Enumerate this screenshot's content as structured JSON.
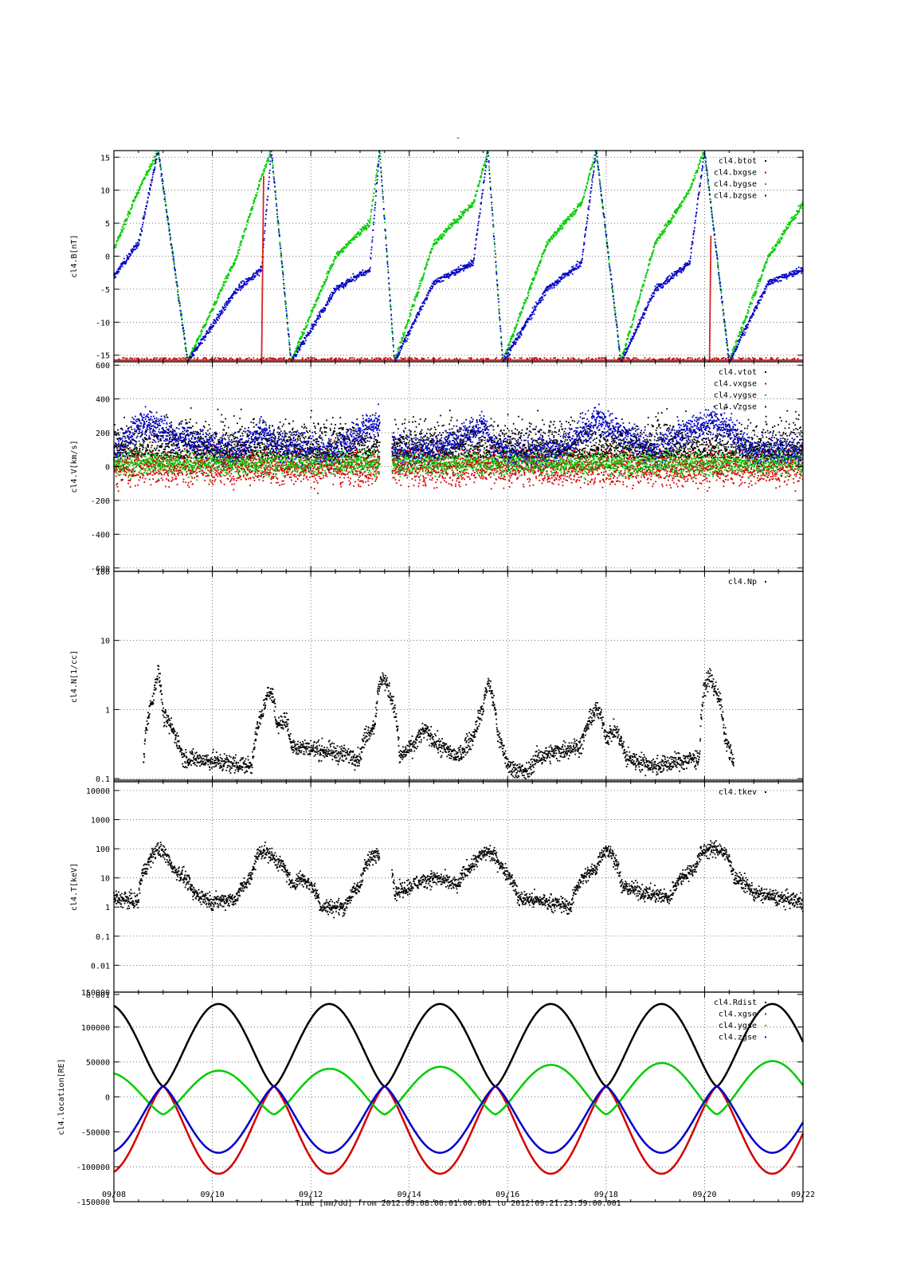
{
  "figure": {
    "title": "-",
    "time_axis_label": "Time [mm/dd]  from 2012:09:08:00:01:00.001  to  2012:09:21:23:59:00.001",
    "x_tick_labels": [
      "09/08",
      "09/10",
      "09/12",
      "09/14",
      "09/16",
      "09/18",
      "09/20",
      "09/22"
    ],
    "x_range_days": [
      8,
      22
    ]
  },
  "chart_data": [
    {
      "type": "scatter",
      "panel": "magnetic-field",
      "ylabel": "cl4.B[nT]",
      "ylim": [
        -16,
        16
      ],
      "scale": "linear",
      "y_ticks": [
        15,
        10,
        5,
        0,
        -5,
        -10,
        -15
      ],
      "y_tick_labels": [
        "15",
        "10",
        "5",
        "0",
        "-5",
        "-10",
        "-15"
      ],
      "grid": true,
      "legend_position": "top-right",
      "series": [
        {
          "name": "cl4.btot",
          "color": "#000000"
        },
        {
          "name": "cl4.bxgse",
          "color": "#d40000"
        },
        {
          "name": "cl4.bygse",
          "color": "#00cc00"
        },
        {
          "name": "cl4.bzgse",
          "color": "#0000c8"
        }
      ],
      "x": [
        8.0,
        8.5,
        8.9,
        9.5,
        10.5,
        11.0,
        11.2,
        11.6,
        12.5,
        13.2,
        13.4,
        13.7,
        14.5,
        15.3,
        15.6,
        15.9,
        16.8,
        17.5,
        17.8,
        18.3,
        19.0,
        19.7,
        20.0,
        20.5,
        21.3,
        22.0
      ],
      "bygse": [
        1,
        10,
        16,
        -16,
        0,
        12,
        16,
        -16,
        0,
        5,
        16,
        -16,
        2,
        8,
        16,
        -16,
        2,
        8,
        16,
        -16,
        2,
        10,
        16,
        -16,
        0,
        8
      ],
      "bzgse": [
        -3,
        2,
        16,
        -16,
        -5,
        -2,
        16,
        -16,
        -5,
        -2,
        16,
        -16,
        -4,
        -1,
        16,
        -16,
        -5,
        -1,
        16,
        -16,
        -5,
        -1,
        16,
        -16,
        -4,
        -2
      ],
      "bxgse_spike": {
        "x": [
          11.0,
          20.1
        ],
        "values": [
          12,
          3
        ]
      }
    },
    {
      "type": "scatter",
      "panel": "velocity",
      "ylabel": "cl4.V[km/s]",
      "ylim": [
        -620,
        620
      ],
      "scale": "linear",
      "y_ticks": [
        600,
        400,
        200,
        0,
        -200,
        -400,
        -600
      ],
      "y_tick_labels": [
        "600",
        "400",
        "200",
        "0",
        "-200",
        "-400",
        "-600"
      ],
      "grid": true,
      "legend_position": "top-right",
      "series": [
        {
          "name": "cl4.vtot",
          "color": "#000000"
        },
        {
          "name": "cl4.vxgse",
          "color": "#d40000"
        },
        {
          "name": "cl4.vygse",
          "color": "#00cc00"
        },
        {
          "name": "cl4.vzgse",
          "color": "#0000c8"
        }
      ],
      "gap_days": [
        [
          13.4,
          13.65
        ]
      ],
      "vzgse_envelope": {
        "x": [
          8.0,
          8.5,
          8.7,
          9.2,
          10.5,
          11.0,
          11.3,
          12.5,
          13.2,
          13.4,
          13.7,
          14.5,
          15.5,
          15.7,
          16.0,
          17.0,
          17.8,
          18.2,
          19.0,
          19.8,
          20.2,
          20.5,
          21.0,
          22.0
        ],
        "values": [
          150,
          400,
          450,
          300,
          150,
          350,
          200,
          150,
          400,
          450,
          150,
          150,
          400,
          200,
          150,
          150,
          450,
          350,
          150,
          400,
          450,
          350,
          150,
          150
        ]
      }
    },
    {
      "type": "scatter",
      "panel": "density",
      "ylabel": "cl4.N[1/cc]",
      "ylim": [
        0.09,
        100
      ],
      "scale": "log",
      "y_ticks": [
        100,
        10,
        1,
        0.1
      ],
      "y_tick_labels": [
        "100",
        "10",
        "1",
        "0.1"
      ],
      "grid": true,
      "legend_position": "top-right",
      "series": [
        {
          "name": "cl4.Np",
          "color": "#000000"
        }
      ],
      "x": [
        8.6,
        8.8,
        8.9,
        9.0,
        9.2,
        9.4,
        10.8,
        11.0,
        11.2,
        11.3,
        11.5,
        11.6,
        13.0,
        13.1,
        13.3,
        13.45,
        13.8,
        14.1,
        14.3,
        14.6,
        15.0,
        15.3,
        15.5,
        15.6,
        15.8,
        16.0,
        16.4,
        16.6,
        17.5,
        17.8,
        17.9,
        18.0,
        18.2,
        18.4,
        19.0,
        19.9,
        20.0,
        20.1,
        20.2,
        20.3,
        20.4,
        20.6
      ],
      "values": [
        0.15,
        1.5,
        3.5,
        0.8,
        0.5,
        0.2,
        0.15,
        0.8,
        2.0,
        0.6,
        0.7,
        0.3,
        0.2,
        0.4,
        0.6,
        3.0,
        0.2,
        0.3,
        0.5,
        0.3,
        0.2,
        0.4,
        1.0,
        2.5,
        0.4,
        0.15,
        0.12,
        0.2,
        0.3,
        1.0,
        0.8,
        0.4,
        0.5,
        0.2,
        0.15,
        0.2,
        2.0,
        3.0,
        2.0,
        1.5,
        0.4,
        0.15
      ]
    },
    {
      "type": "scatter",
      "panel": "temperature",
      "ylabel": "cl4.T[keV]",
      "ylim": [
        0.0012,
        20000
      ],
      "scale": "log",
      "y_ticks": [
        10000,
        1000,
        100,
        10,
        1,
        0.1,
        0.01,
        0.001
      ],
      "y_tick_labels": [
        "10000",
        "1000",
        "100",
        "10",
        "1",
        "0.1",
        "0.01",
        "0.001"
      ],
      "grid": true,
      "legend_position": "top-right",
      "series": [
        {
          "name": "cl4.tkev",
          "color": "#000000"
        }
      ],
      "gap_days": [
        [
          13.4,
          13.65
        ]
      ],
      "x": [
        8.0,
        8.5,
        8.7,
        8.9,
        9.2,
        9.6,
        10.0,
        10.5,
        10.8,
        11.0,
        11.3,
        11.6,
        11.8,
        12.2,
        12.7,
        13.0,
        13.3,
        13.4,
        13.7,
        14.0,
        14.5,
        15.0,
        15.3,
        15.6,
        15.9,
        16.2,
        16.8,
        17.3,
        17.8,
        18.0,
        18.3,
        18.8,
        19.3,
        19.8,
        20.0,
        20.3,
        20.6,
        21.0,
        21.5,
        22.0
      ],
      "values": [
        2,
        1.5,
        30,
        100,
        20,
        3,
        1.5,
        2,
        10,
        90,
        40,
        5,
        10,
        1,
        1,
        5,
        60,
        90,
        3,
        5,
        10,
        5,
        30,
        80,
        20,
        2,
        1.5,
        1,
        20,
        100,
        5,
        3,
        2,
        20,
        90,
        100,
        10,
        3,
        2,
        1.5
      ]
    },
    {
      "type": "line",
      "panel": "location",
      "ylabel": "cl4.location[RE]",
      "ylim": [
        -150000,
        150000
      ],
      "scale": "linear",
      "y_ticks": [
        150000,
        100000,
        50000,
        0,
        -50000,
        -100000,
        -150000
      ],
      "y_tick_labels": [
        "150000",
        "100000",
        "50000",
        "0",
        "-50000",
        "-100000",
        "-150000"
      ],
      "grid": true,
      "legend_position": "top-right",
      "orbit_period_days": 2.25,
      "first_perigee_day": 9.0,
      "series": [
        {
          "name": "cl4.Rdist",
          "color": "#000000",
          "perigee": 15000,
          "apogee": 133000
        },
        {
          "name": "cl4.xgse",
          "color": "#d40000",
          "perigee": 15000,
          "apogee": -110000
        },
        {
          "name": "cl4.ygse",
          "color": "#00cc00",
          "perigee": -25000,
          "apogee_start": 35000,
          "apogee_end": 52000
        },
        {
          "name": "cl4.zgse",
          "color": "#0000c8",
          "perigee": 15000,
          "apogee": -80000
        }
      ]
    }
  ]
}
